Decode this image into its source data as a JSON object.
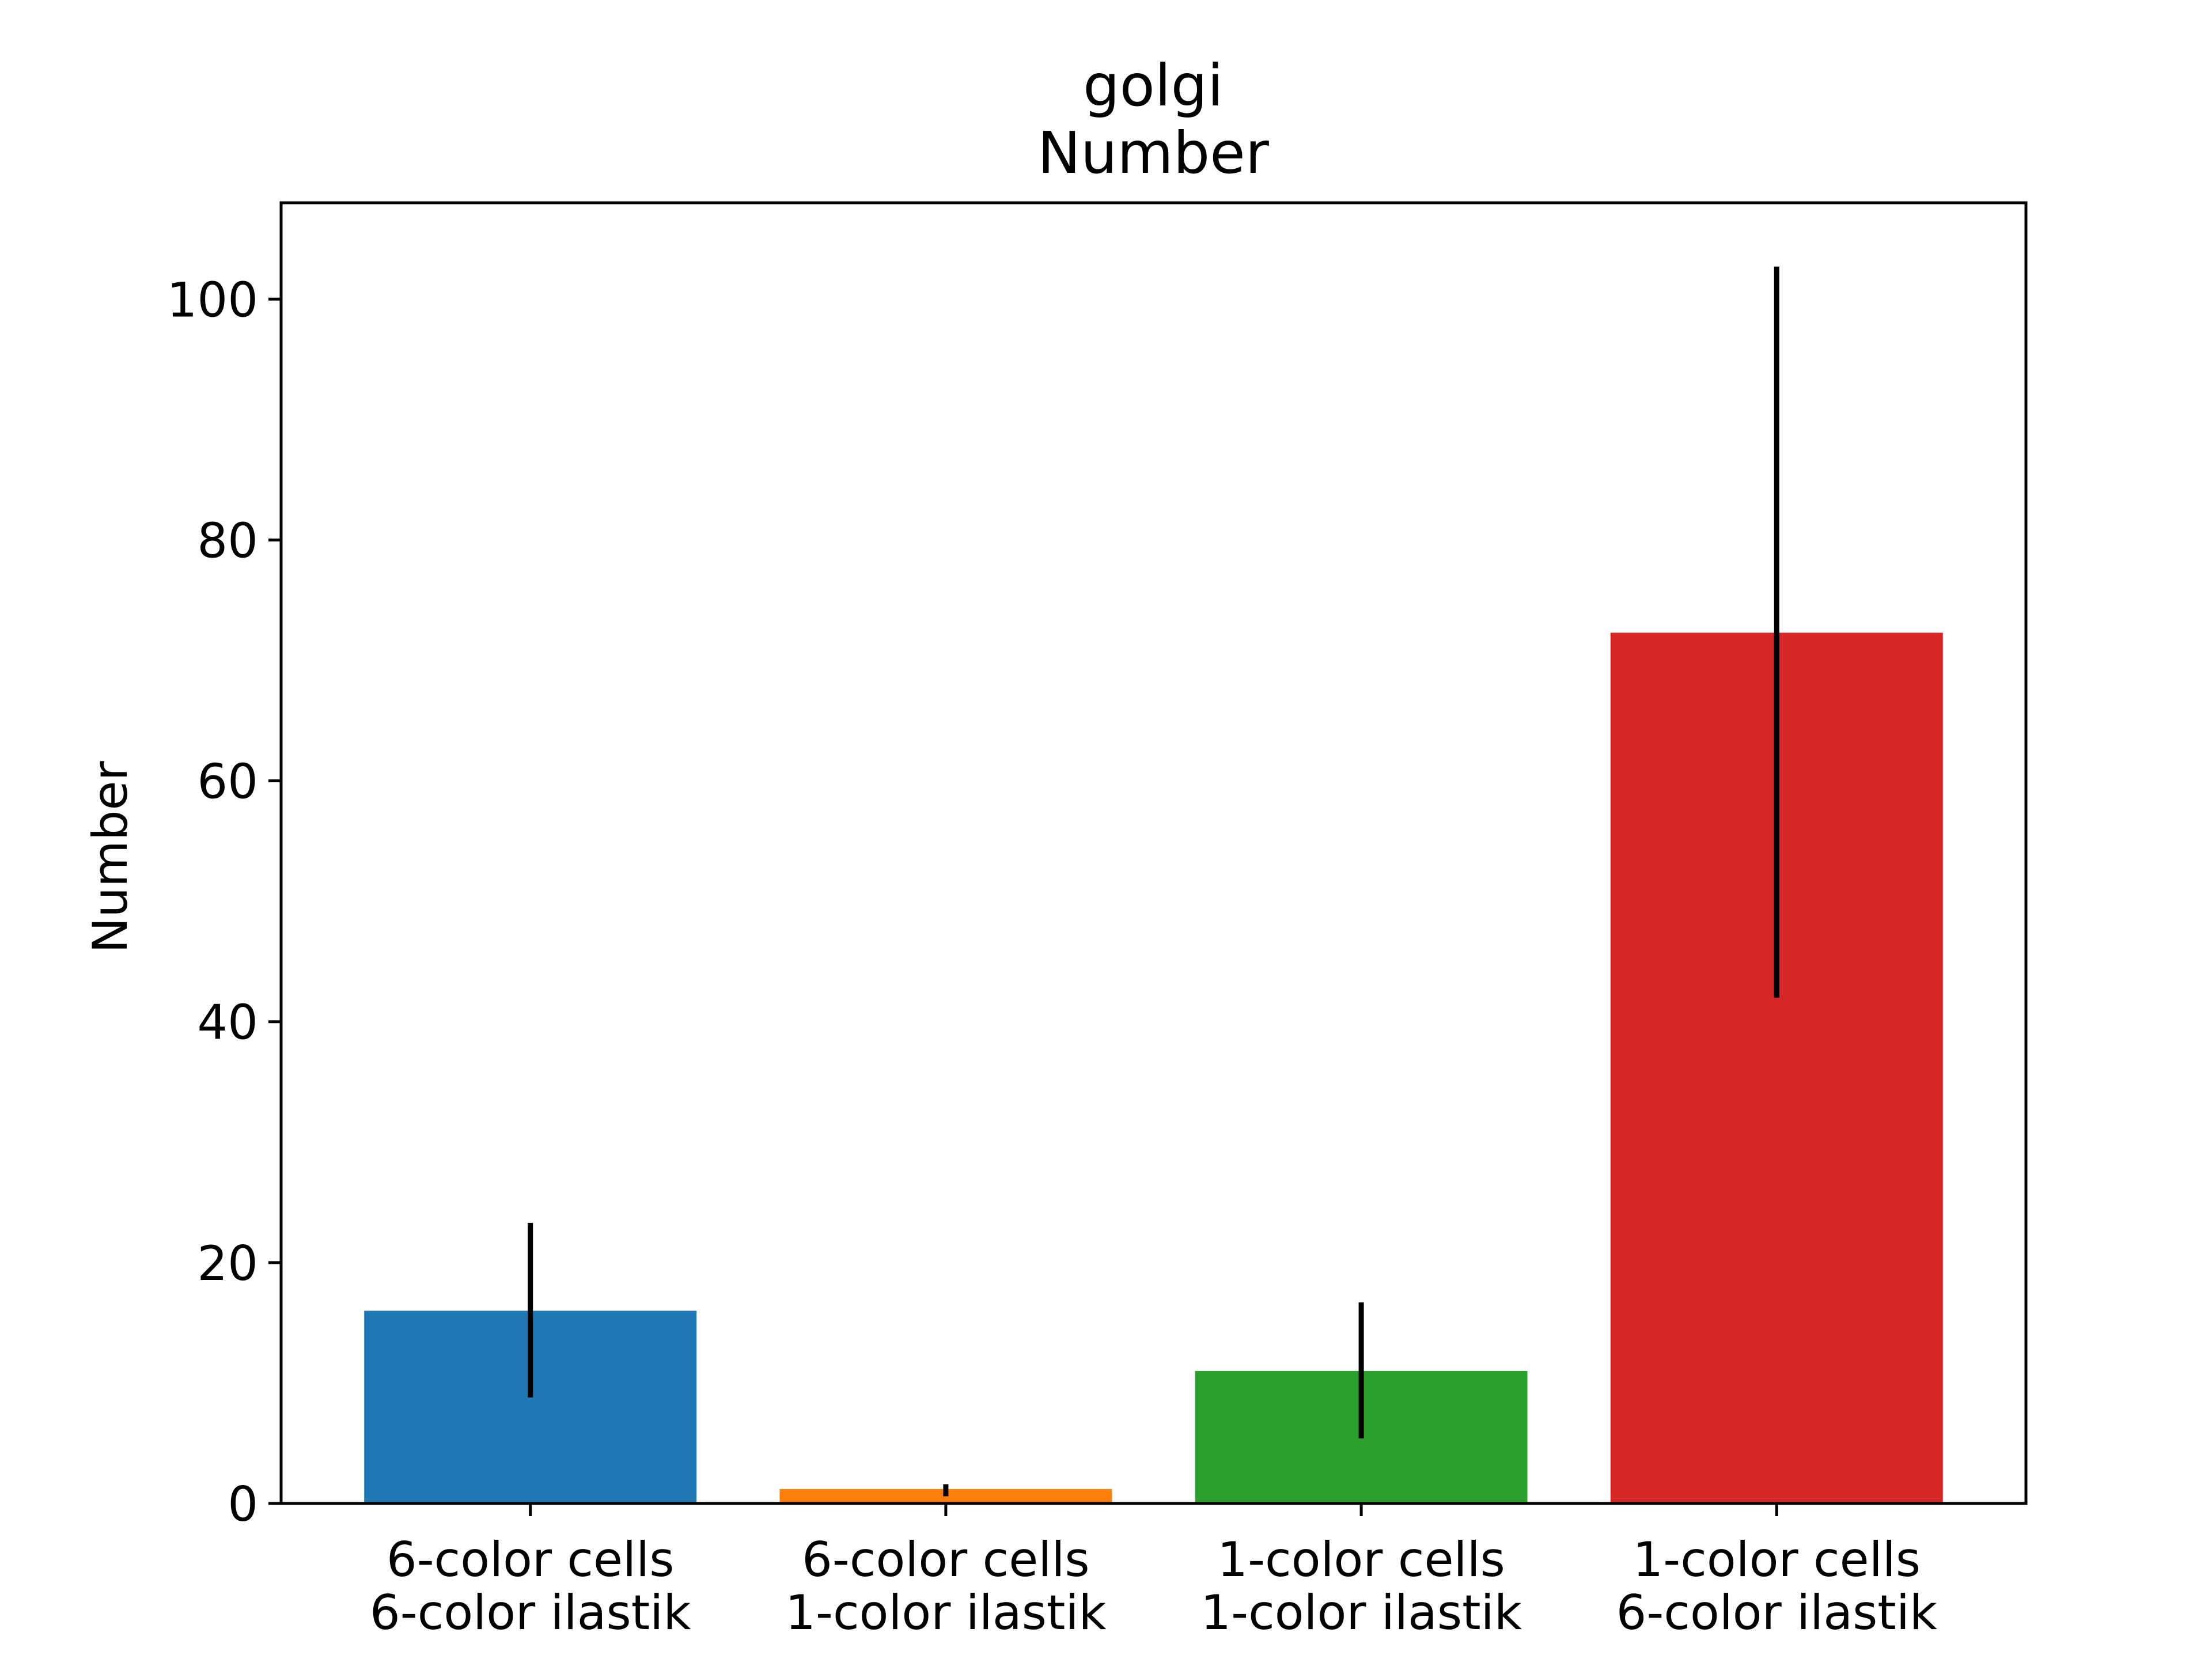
{
  "chart_data": {
    "type": "bar",
    "title": "golgi",
    "subtitle": "Number",
    "xlabel": "",
    "ylabel": "Number",
    "categories": [
      [
        "6-color cells",
        "6-color ilastik"
      ],
      [
        "6-color cells",
        "1-color ilastik"
      ],
      [
        "1-color cells",
        "1-color ilastik"
      ],
      [
        "1-color cells",
        "6-color ilastik"
      ]
    ],
    "values": [
      16.0,
      1.2,
      11.0,
      72.3
    ],
    "error_low": [
      8.8,
      0.6,
      5.4,
      42.0
    ],
    "error_high": [
      23.3,
      1.6,
      16.7,
      102.7
    ],
    "colors": [
      "#1f77b4",
      "#ff7f0e",
      "#2ca02c",
      "#d62728"
    ],
    "error_color": "#000000",
    "ylim": [
      0,
      108
    ],
    "yticks": [
      0,
      20,
      40,
      60,
      80,
      100
    ],
    "grid": false,
    "legend": "none"
  }
}
